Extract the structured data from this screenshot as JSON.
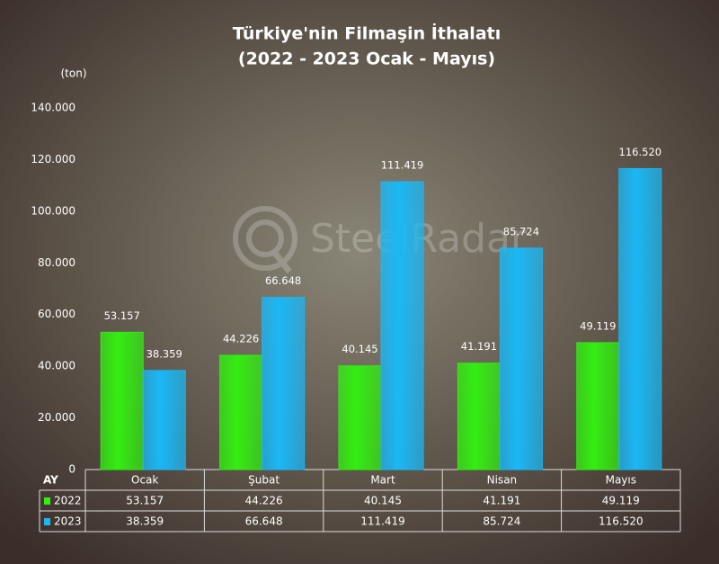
{
  "chart_data": {
    "type": "bar",
    "title": "Türkiye'nin Filmaşin İthalatı",
    "subtitle": "(2022 - 2023 Ocak - Mayıs)",
    "y_label": "(ton)",
    "table_header": "AY",
    "watermark": "SteelRadar",
    "categories": [
      "Ocak",
      "Şubat",
      "Mart",
      "Nisan",
      "Mayıs"
    ],
    "series": [
      {
        "name": "2022",
        "color": "#33ee11",
        "values": [
          53157,
          44226,
          40145,
          41191,
          49119
        ],
        "value_labels": [
          "53.157",
          "44.226",
          "40.145",
          "41.191",
          "49.119"
        ]
      },
      {
        "name": "2023",
        "color": "#1ab8f5",
        "values": [
          38359,
          66648,
          111419,
          85724,
          116520
        ],
        "value_labels": [
          "38.359",
          "66.648",
          "111.419",
          "85.724",
          "116.520"
        ]
      }
    ],
    "ylim": [
      0,
      140000
    ],
    "yticks": [
      0,
      {
        "value": 20000,
        "label": "20.000"
      },
      {
        "value": 40000,
        "label": "40.000"
      },
      {
        "value": 60000,
        "label": "60.000"
      },
      {
        "value": 80000,
        "label": "80.000"
      },
      {
        "value": 100000,
        "label": "100.000"
      },
      {
        "value": 120000,
        "label": "120.000"
      },
      {
        "value": 140000,
        "label": "140.000"
      }
    ]
  }
}
